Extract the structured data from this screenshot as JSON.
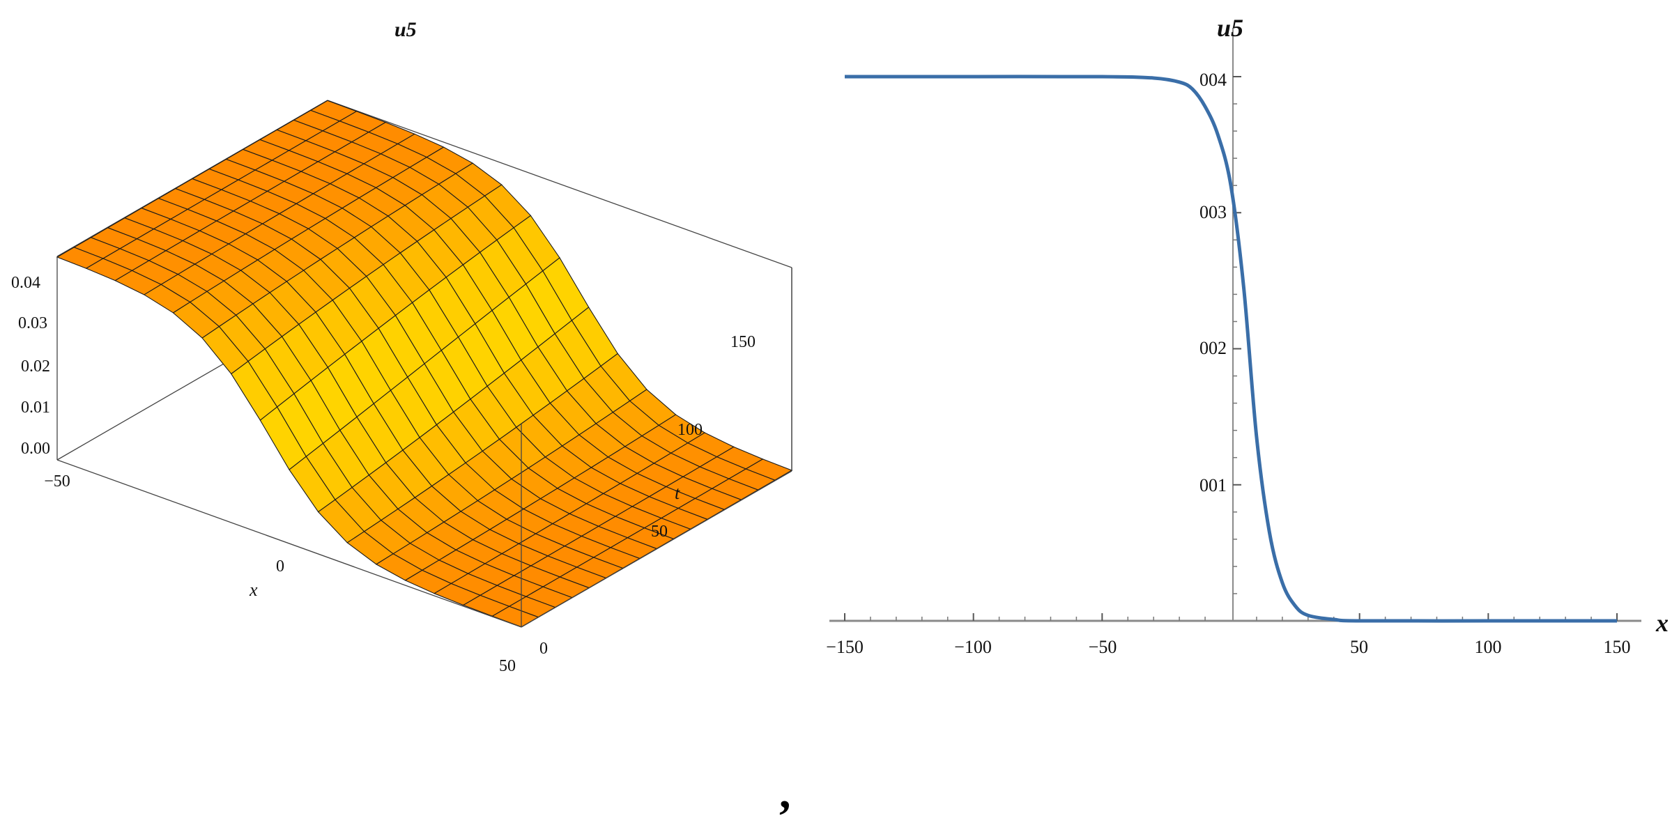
{
  "chart_data": [
    {
      "type": "surface",
      "title": "u5",
      "xlabel": "x",
      "ylabel": "t",
      "zlabel": "",
      "xlim": [
        -50,
        50
      ],
      "ylim": [
        0,
        150
      ],
      "zlim": [
        0,
        0.04
      ],
      "x_ticks": [
        "−50",
        "0",
        "50"
      ],
      "t_ticks": [
        "0",
        "50",
        "100",
        "150"
      ],
      "z_ticks": [
        "0.00",
        "0.01",
        "0.02",
        "0.03",
        "0.04"
      ],
      "function": {
        "plateau": 0.04,
        "center_x": 0,
        "drift_per_t": 0.06,
        "width": 8
      },
      "mesh": {
        "x_divisions": 16,
        "t_divisions": 16
      },
      "colors": {
        "low": "#ff8a00",
        "high": "#ffe000",
        "mesh": "#1a1a1a"
      }
    },
    {
      "type": "line",
      "title": "u5",
      "xlabel": "x",
      "ylabel": "",
      "xlim": [
        -150,
        150
      ],
      "ylim": [
        0,
        0.04
      ],
      "x_ticks": [
        "−150",
        "−100",
        "−50",
        "50",
        "100",
        "150"
      ],
      "y_ticks": [
        "001",
        "002",
        "003",
        "004"
      ],
      "series": [
        {
          "x": [
            -150,
            -100,
            -50,
            -30,
            -20,
            -15,
            -10,
            -5,
            0,
            5,
            10,
            15,
            20,
            25,
            30,
            40,
            50,
            100,
            150
          ],
          "y": [
            0.04,
            0.04,
            0.04,
            0.0399,
            0.0396,
            0.0391,
            0.0378,
            0.0357,
            0.032,
            0.0245,
            0.0135,
            0.0065,
            0.0028,
            0.0011,
            0.0004,
            0.0001,
            0.0,
            0.0,
            0.0
          ]
        }
      ],
      "colors": {
        "line": "#3a6ea8",
        "axis": "#888888"
      }
    }
  ],
  "footer": {
    "mark": ","
  }
}
